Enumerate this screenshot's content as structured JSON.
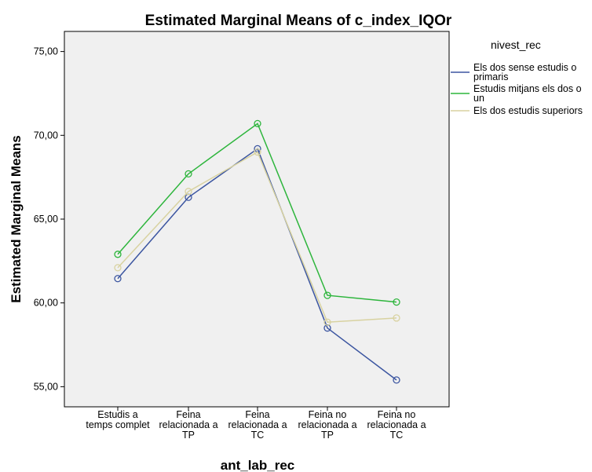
{
  "chart_data": {
    "type": "line",
    "title": "Estimated Marginal Means of c_index_IQOr",
    "xlabel": "ant_lab_rec",
    "ylabel": "Estimated Marginal Means",
    "categories": [
      [
        "Estudis a",
        "temps complet"
      ],
      [
        "Feina",
        "relacionada a",
        "TP"
      ],
      [
        "Feina",
        "relacionada a",
        "TC"
      ],
      [
        "Feina no",
        "relacionada a",
        "TP"
      ],
      [
        "Feina no",
        "relacionada a",
        "TC"
      ]
    ],
    "yticks": [
      "55,00",
      "60,00",
      "65,00",
      "70,00",
      "75,00"
    ],
    "ytick_values": [
      55,
      60,
      65,
      70,
      75
    ],
    "ylim": [
      53.8,
      76.2
    ],
    "grid": false,
    "legend_title": "nivest_rec",
    "legend_position": "right",
    "series": [
      {
        "name": [
          "Els dos sense estudis o",
          "primaris"
        ],
        "color": "#3b55a0",
        "values": [
          61.45,
          66.3,
          69.2,
          58.5,
          55.4
        ]
      },
      {
        "name": [
          "Estudis mitjans els dos o",
          "un"
        ],
        "color": "#2db53c",
        "values": [
          62.9,
          67.7,
          70.7,
          60.45,
          60.05
        ]
      },
      {
        "name": [
          "Els dos estudis superiors"
        ],
        "color": "#d8d2a0",
        "values": [
          62.1,
          66.65,
          69.0,
          58.85,
          59.1
        ]
      }
    ]
  }
}
